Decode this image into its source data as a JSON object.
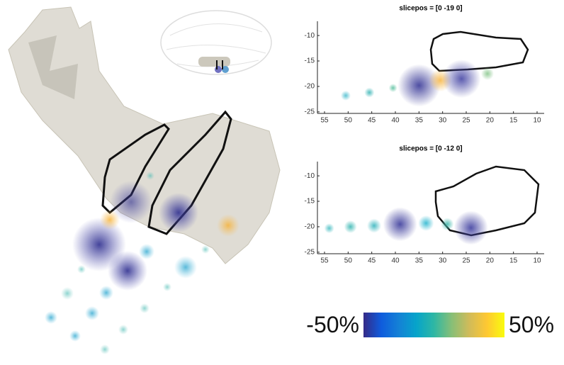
{
  "chart_data": [
    {
      "type": "scatter",
      "title": "slicepos = [0 -19 0]",
      "series": [
        {
          "x": [
            50.5,
            45.5,
            40.5,
            35,
            30.5,
            26,
            20.5
          ],
          "values": [
            -21.8,
            -21.2,
            -20.3,
            -19.8,
            -18.8,
            -18.5,
            -17.5
          ],
          "sizes": [
            7,
            7,
            6,
            30,
            16,
            27,
            9
          ],
          "colors": [
            "#4fbfd0",
            "#3fb7b8",
            "#5cc0a0",
            "#3a3a98",
            "#f7b84a",
            "#4848a6",
            "#8cc890"
          ]
        }
      ],
      "xlim": [
        56.5,
        8.5
      ],
      "xticks": [
        55,
        50,
        45,
        40,
        35,
        30,
        25,
        20,
        15,
        10
      ],
      "ylim": [
        -25.3,
        -7.2
      ],
      "yticks": [
        -25,
        -20,
        -15,
        -10
      ]
    },
    {
      "type": "scatter",
      "title": "slicepos = [0 -12 0]",
      "series": [
        {
          "x": [
            54,
            49.5,
            44.5,
            39,
            33.5,
            29,
            24
          ],
          "values": [
            -20.3,
            -20,
            -19.8,
            -19.5,
            -19.3,
            -19.5,
            -20.2
          ],
          "sizes": [
            7,
            9,
            10,
            24,
            11,
            9,
            24
          ],
          "colors": [
            "#4cbfc4",
            "#3cb8b4",
            "#3ab6bf",
            "#3d3d9c",
            "#2fb8d0",
            "#40b8ac",
            "#4040a0"
          ]
        }
      ],
      "xlim": [
        56.5,
        8.5
      ],
      "xticks": [
        55,
        50,
        45,
        40,
        35,
        30,
        25,
        20,
        15,
        10
      ],
      "ylim": [
        -25.3,
        -7.2
      ],
      "yticks": [
        -25,
        -20,
        -15,
        -10
      ]
    },
    {
      "type": "colorbar",
      "lim": [
        -50,
        50
      ],
      "ticks": [
        {
          "value": -50,
          "label": "-50%"
        },
        {
          "value": 50,
          "label": "50%"
        }
      ],
      "colormap": [
        "#352a87",
        "#0f5cdd",
        "#1481d6",
        "#06a4ca",
        "#2eb7a4",
        "#87bf77",
        "#d1bb59",
        "#fec832",
        "#f9fb0e"
      ]
    }
  ]
}
